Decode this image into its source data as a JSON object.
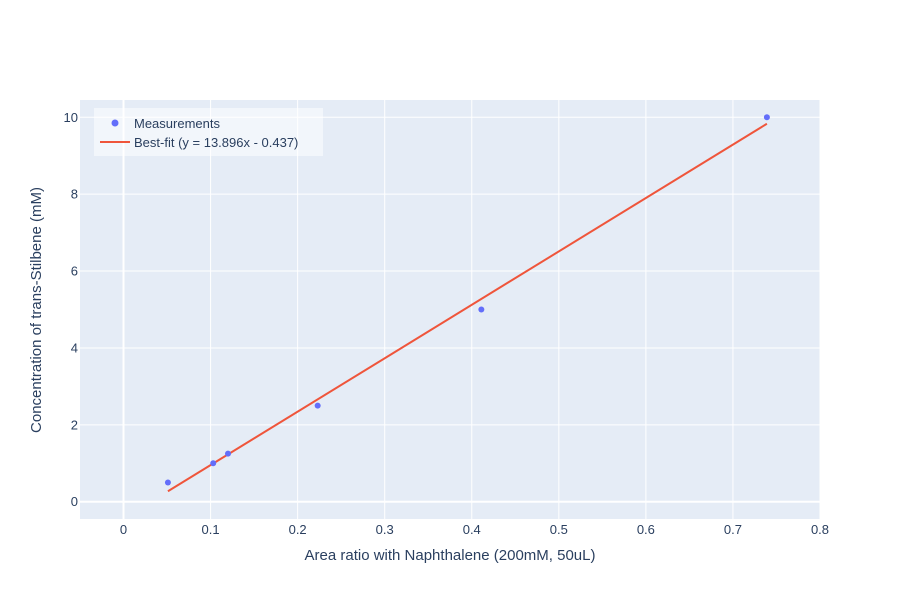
{
  "chart_data": {
    "type": "scatter",
    "title": "",
    "xlabel": "Area ratio with Naphthalene (200mM, 50uL)",
    "ylabel": "Concentration of trans-Stilbene (mM)",
    "xlim": [
      -0.05,
      0.8
    ],
    "ylim": [
      -0.45,
      10.45
    ],
    "x_ticks": [
      0,
      0.1,
      0.2,
      0.3,
      0.4,
      0.5,
      0.6,
      0.7,
      0.8
    ],
    "x_tick_labels": [
      "0",
      "0.1",
      "0.2",
      "0.3",
      "0.4",
      "0.5",
      "0.6",
      "0.7",
      "0.8"
    ],
    "y_ticks": [
      0,
      2,
      4,
      6,
      8,
      10
    ],
    "y_tick_labels": [
      "0",
      "2",
      "4",
      "6",
      "8",
      "10"
    ],
    "grid": true,
    "legend_position": "top-left",
    "series": [
      {
        "name": "Measurements",
        "mode": "markers",
        "color": "#636efa",
        "x": [
          0.051,
          0.103,
          0.12,
          0.223,
          0.411,
          0.739
        ],
        "y": [
          0.5,
          1.0,
          1.25,
          2.5,
          5.0,
          10.0
        ]
      },
      {
        "name": "Best-fit (y = 13.896x - 0.437)",
        "mode": "line",
        "color": "#ef553b",
        "x": [
          0.051,
          0.739
        ],
        "y": [
          0.272,
          9.832
        ]
      }
    ]
  }
}
